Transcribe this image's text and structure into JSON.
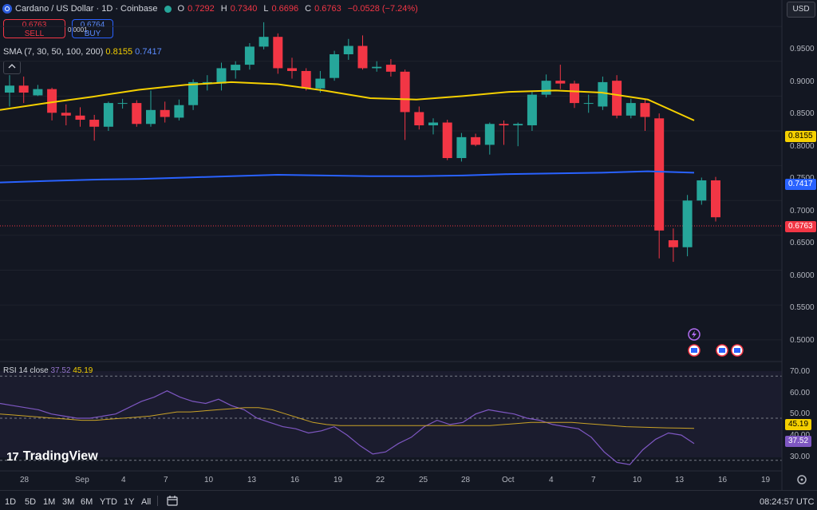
{
  "header": {
    "symbol": "Cardano / US Dollar · 1D · Coinbase",
    "ohlc": [
      {
        "k": "O",
        "v": "0.7292"
      },
      {
        "k": "H",
        "v": "0.7340"
      },
      {
        "k": "L",
        "v": "0.6696"
      },
      {
        "k": "C",
        "v": "0.6763"
      }
    ],
    "change": "−0.0528 (−7.24%)",
    "status_color": "#26a69a"
  },
  "trade": {
    "sell_price": "0.6763",
    "sell_label": "SELL",
    "spread": "0.0001",
    "buy_price": "0.6764",
    "buy_label": "BUY"
  },
  "sma": {
    "label": "SMA (7, 30, 50, 100, 200)",
    "v1": "0.8155",
    "v2": "0.7417"
  },
  "currency": "USD",
  "price_axis": [
    "0.9500",
    "0.9000",
    "0.8500",
    "0.8000",
    "0.7500",
    "0.7000",
    "0.6500",
    "0.6000",
    "0.5500",
    "0.5000"
  ],
  "price_tags": {
    "sma_yellow": "0.8155",
    "sma_blue": "0.7417",
    "last": "0.6763"
  },
  "rsi": {
    "label": "RSI 14 close",
    "v1": "37.52",
    "v2": "45.19",
    "axis": [
      "70.00",
      "60.00",
      "50.00",
      "40.00",
      "30.00"
    ]
  },
  "x_axis": [
    "28",
    "Sep",
    "4",
    "7",
    "10",
    "13",
    "16",
    "19",
    "22",
    "25",
    "28",
    "Oct",
    "4",
    "7",
    "10",
    "13",
    "16",
    "19"
  ],
  "ranges": [
    "1D",
    "5D",
    "1M",
    "3M",
    "6M",
    "YTD",
    "1Y",
    "All"
  ],
  "clock": "08:24:57 UTC",
  "brand": "TradingView",
  "colors": {
    "up": "#26a69a",
    "down": "#f23645",
    "sma_yellow": "#f5d000",
    "sma_blue": "#2962ff",
    "rsi": "#7e57c2"
  },
  "chart_data": {
    "type": "candlestick",
    "candles": [
      {
        "o": 0.855,
        "c": 0.865,
        "h": 0.88,
        "l": 0.835
      },
      {
        "o": 0.865,
        "c": 0.855,
        "h": 0.878,
        "l": 0.84
      },
      {
        "o": 0.851,
        "c": 0.86,
        "h": 0.866,
        "l": 0.85
      },
      {
        "o": 0.86,
        "c": 0.826,
        "h": 0.862,
        "l": 0.815
      },
      {
        "o": 0.826,
        "c": 0.822,
        "h": 0.838,
        "l": 0.808
      },
      {
        "o": 0.822,
        "c": 0.816,
        "h": 0.834,
        "l": 0.806
      },
      {
        "o": 0.816,
        "c": 0.806,
        "h": 0.823,
        "l": 0.786
      },
      {
        "o": 0.806,
        "c": 0.84,
        "h": 0.842,
        "l": 0.8
      },
      {
        "o": 0.839,
        "c": 0.84,
        "h": 0.846,
        "l": 0.832
      },
      {
        "o": 0.84,
        "c": 0.81,
        "h": 0.844,
        "l": 0.806
      },
      {
        "o": 0.81,
        "c": 0.83,
        "h": 0.858,
        "l": 0.806
      },
      {
        "o": 0.83,
        "c": 0.82,
        "h": 0.842,
        "l": 0.812
      },
      {
        "o": 0.819,
        "c": 0.837,
        "h": 0.845,
        "l": 0.815
      },
      {
        "o": 0.837,
        "c": 0.87,
        "h": 0.874,
        "l": 0.83
      },
      {
        "o": 0.87,
        "c": 0.87,
        "h": 0.88,
        "l": 0.858
      },
      {
        "o": 0.868,
        "c": 0.89,
        "h": 0.898,
        "l": 0.858
      },
      {
        "o": 0.887,
        "c": 0.895,
        "h": 0.9,
        "l": 0.875
      },
      {
        "o": 0.895,
        "c": 0.921,
        "h": 0.926,
        "l": 0.888
      },
      {
        "o": 0.921,
        "c": 0.935,
        "h": 0.956,
        "l": 0.917
      },
      {
        "o": 0.935,
        "c": 0.89,
        "h": 0.94,
        "l": 0.882
      },
      {
        "o": 0.89,
        "c": 0.886,
        "h": 0.905,
        "l": 0.875
      },
      {
        "o": 0.886,
        "c": 0.861,
        "h": 0.89,
        "l": 0.858
      },
      {
        "o": 0.861,
        "c": 0.875,
        "h": 0.886,
        "l": 0.855
      },
      {
        "o": 0.876,
        "c": 0.91,
        "h": 0.915,
        "l": 0.872
      },
      {
        "o": 0.91,
        "c": 0.922,
        "h": 0.932,
        "l": 0.902
      },
      {
        "o": 0.922,
        "c": 0.89,
        "h": 0.937,
        "l": 0.888
      },
      {
        "o": 0.89,
        "c": 0.892,
        "h": 0.9,
        "l": 0.885
      },
      {
        "o": 0.895,
        "c": 0.885,
        "h": 0.903,
        "l": 0.878
      },
      {
        "o": 0.885,
        "c": 0.827,
        "h": 0.888,
        "l": 0.787
      },
      {
        "o": 0.827,
        "c": 0.808,
        "h": 0.835,
        "l": 0.802
      },
      {
        "o": 0.808,
        "c": 0.812,
        "h": 0.818,
        "l": 0.795
      },
      {
        "o": 0.812,
        "c": 0.761,
        "h": 0.816,
        "l": 0.758
      },
      {
        "o": 0.761,
        "c": 0.791,
        "h": 0.797,
        "l": 0.756
      },
      {
        "o": 0.791,
        "c": 0.78,
        "h": 0.796,
        "l": 0.778
      },
      {
        "o": 0.78,
        "c": 0.81,
        "h": 0.812,
        "l": 0.766
      },
      {
        "o": 0.81,
        "c": 0.808,
        "h": 0.815,
        "l": 0.78
      },
      {
        "o": 0.808,
        "c": 0.81,
        "h": 0.812,
        "l": 0.778
      },
      {
        "o": 0.808,
        "c": 0.852,
        "h": 0.856,
        "l": 0.8
      },
      {
        "o": 0.852,
        "c": 0.872,
        "h": 0.881,
        "l": 0.848
      },
      {
        "o": 0.872,
        "c": 0.868,
        "h": 0.895,
        "l": 0.86
      },
      {
        "o": 0.868,
        "c": 0.84,
        "h": 0.872,
        "l": 0.833
      },
      {
        "o": 0.84,
        "c": 0.84,
        "h": 0.852,
        "l": 0.826
      },
      {
        "o": 0.835,
        "c": 0.87,
        "h": 0.878,
        "l": 0.83
      },
      {
        "o": 0.872,
        "c": 0.822,
        "h": 0.88,
        "l": 0.818
      },
      {
        "o": 0.822,
        "c": 0.84,
        "h": 0.846,
        "l": 0.818
      },
      {
        "o": 0.84,
        "c": 0.82,
        "h": 0.845,
        "l": 0.8
      },
      {
        "o": 0.818,
        "c": 0.657,
        "h": 0.825,
        "l": 0.617
      },
      {
        "o": 0.643,
        "c": 0.633,
        "h": 0.66,
        "l": 0.612
      },
      {
        "o": 0.633,
        "c": 0.7,
        "h": 0.708,
        "l": 0.62
      },
      {
        "o": 0.7,
        "c": 0.729,
        "h": 0.733,
        "l": 0.694
      },
      {
        "o": 0.729,
        "c": 0.676,
        "h": 0.734,
        "l": 0.67
      }
    ],
    "sma_yellow": [
      0.83,
      0.84,
      0.849,
      0.859,
      0.866,
      0.87,
      0.867,
      0.858,
      0.847,
      0.845,
      0.85,
      0.856,
      0.858,
      0.855,
      0.845,
      0.815
    ],
    "sma_blue": [
      0.726,
      0.728,
      0.73,
      0.731,
      0.733,
      0.735,
      0.737,
      0.736,
      0.735,
      0.735,
      0.736,
      0.738,
      0.739,
      0.74,
      0.742,
      0.74
    ],
    "rsi_line": [
      57,
      56,
      55,
      54,
      52,
      51,
      50,
      50,
      51,
      52,
      55,
      58,
      60,
      63,
      60,
      58,
      57,
      59,
      56,
      54,
      50,
      48,
      46,
      45,
      43,
      44,
      46,
      42,
      37,
      33,
      34,
      38,
      41,
      46,
      49,
      47,
      48,
      52,
      54,
      53,
      52,
      50,
      49,
      47,
      46,
      45,
      41,
      34,
      29,
      28,
      35,
      40,
      43,
      42,
      38
    ],
    "rsi_ma": [
      52,
      51.5,
      51,
      50.5,
      50,
      49.5,
      49,
      49,
      49.5,
      50,
      50.5,
      51,
      52,
      53,
      53,
      53.5,
      54,
      54.5,
      55,
      55,
      54,
      52,
      50,
      48,
      47,
      46.5,
      46.5,
      46.5,
      46.5,
      46.5,
      46.5,
      46.5,
      46.5,
      46.5,
      46.5,
      46.5,
      46.5,
      47,
      47.5,
      48,
      48,
      48,
      48,
      47.5,
      47,
      46.5,
      46,
      45.8,
      45.6,
      45.4,
      45.3,
      45.2
    ],
    "y_range": [
      0.47,
      0.965
    ],
    "rsi_range": [
      25,
      75
    ]
  }
}
